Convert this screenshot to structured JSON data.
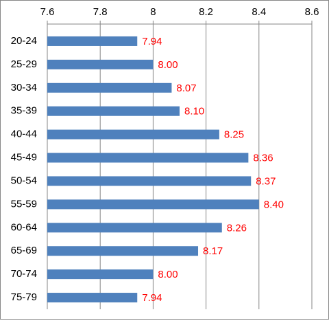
{
  "chart_data": {
    "type": "bar",
    "orientation": "horizontal",
    "categories": [
      "20-24",
      "25-29",
      "30-34",
      "35-39",
      "40-44",
      "45-49",
      "50-54",
      "55-59",
      "60-64",
      "65-69",
      "70-74",
      "75-79"
    ],
    "values": [
      7.94,
      8,
      8.07,
      8.1,
      8.25,
      8.36,
      8.37,
      8.4,
      8.26,
      8.17,
      8,
      7.94
    ],
    "value_labels": [
      "7.94",
      "8.00",
      "8.07",
      "8.10",
      "8.25",
      "8.36",
      "8.37",
      "8.40",
      "8.26",
      "8.17",
      "8.00",
      "7.94"
    ],
    "color": "#4f81bd",
    "value_label_color": "#ff0000",
    "xlim": [
      7.6,
      8.6
    ],
    "xticks": [
      7.6,
      7.8,
      8,
      8.2,
      8.4,
      8.6
    ],
    "grid": true
  }
}
